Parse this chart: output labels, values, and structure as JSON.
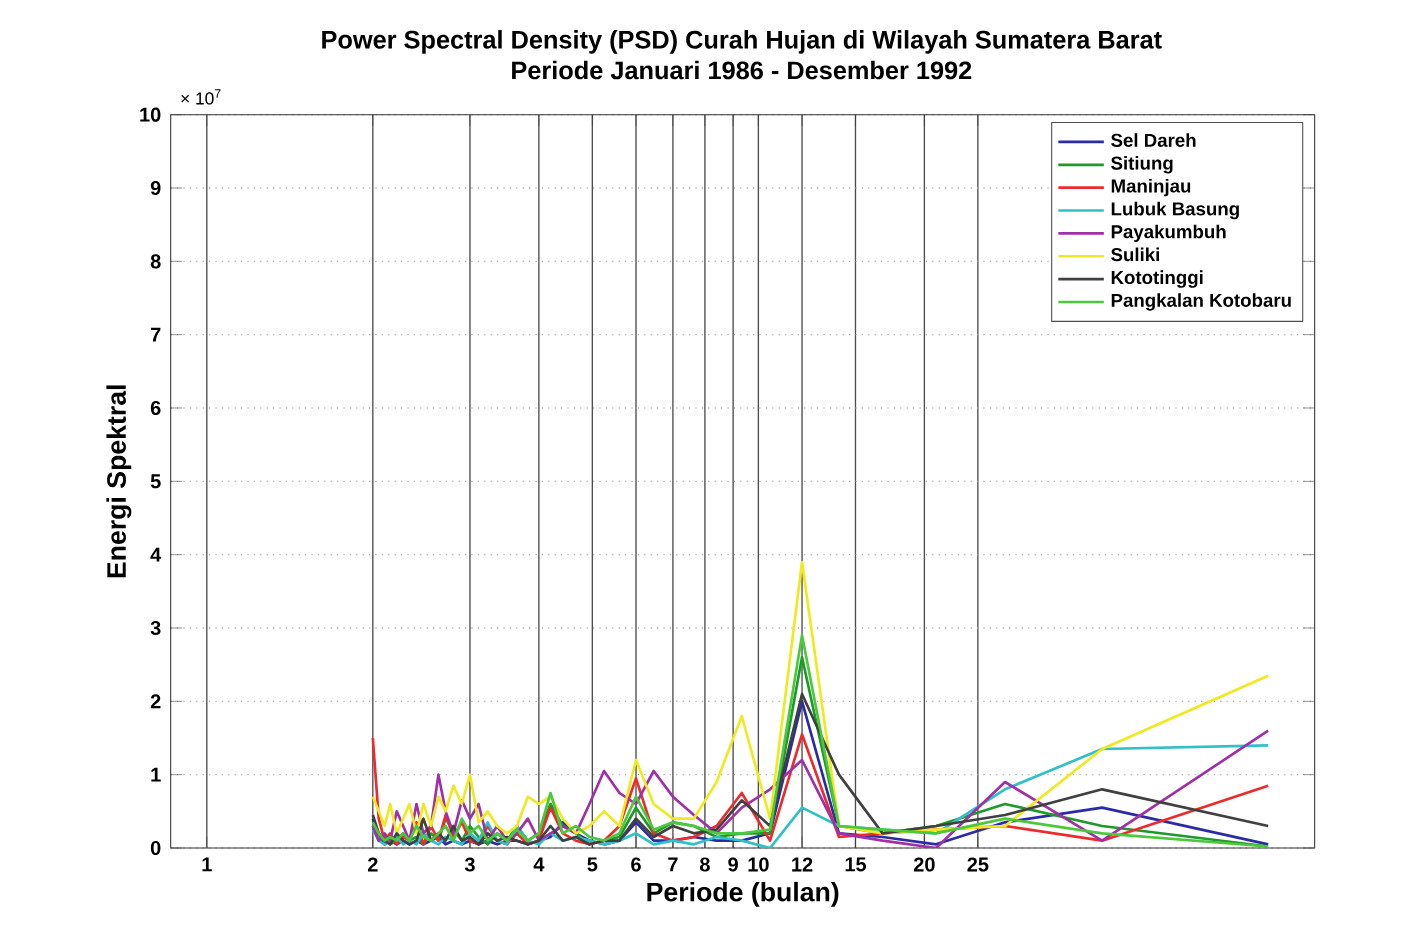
{
  "chart_data": {
    "type": "line",
    "title": "Power Spectral Density (PSD) Curah Hujan di Wilayah Sumatera Barat",
    "subtitle": "Periode Januari 1986 - Desember 1992",
    "xlabel": "Periode (bulan)",
    "ylabel": "Energi Spektral",
    "annotations": [
      "× 10$^{7}$"
    ],
    "log": "x",
    "x": [
      84,
      42,
      28,
      21,
      16.8,
      14,
      12,
      10.5,
      9.33,
      8.4,
      7.64,
      7,
      6.46,
      6,
      5.6,
      5.25,
      4.94,
      4.67,
      4.42,
      4.2,
      4,
      3.82,
      3.65,
      3.5,
      3.36,
      3.23,
      3.11,
      3,
      2.9,
      2.8,
      2.71,
      2.63,
      2.55,
      2.47,
      2.4,
      2.33,
      2.27,
      2.21,
      2.15,
      2.1,
      2.05,
      2
    ],
    "xlim": [
      0.86,
      102
    ],
    "xticks": [
      1,
      2,
      3,
      4,
      5,
      6,
      7,
      8,
      9,
      10,
      12,
      15,
      20,
      25
    ],
    "ylim": [
      0,
      10
    ],
    "yticks": [
      0,
      1,
      2,
      3,
      4,
      5,
      6,
      7,
      8,
      9,
      10
    ],
    "grid": true,
    "legend": "top right",
    "line_style": "solid",
    "marker": "none",
    "series": [
      {
        "name": "Sel Dareh",
        "color": "#2b2ba8",
        "values": [
          0.05,
          0.55,
          0.35,
          0.05,
          0.15,
          0.2,
          2.0,
          0.2,
          0.1,
          0.1,
          0.15,
          0.1,
          0.1,
          0.35,
          0.1,
          0.05,
          0.1,
          0.2,
          0.35,
          0.15,
          0.1,
          0.05,
          0.1,
          0.1,
          0.05,
          0.1,
          0.05,
          0.1,
          0.05,
          0.1,
          0.05,
          0.15,
          0.1,
          0.05,
          0.1,
          0.05,
          0.1,
          0.05,
          0.1,
          0.05,
          0.2,
          0.4
        ]
      },
      {
        "name": "Sitiung",
        "color": "#1e9a2a",
        "values": [
          0.02,
          0.3,
          0.6,
          0.3,
          0.2,
          0.3,
          2.6,
          0.2,
          0.2,
          0.15,
          0.3,
          0.35,
          0.2,
          0.55,
          0.15,
          0.1,
          0.05,
          0.2,
          0.3,
          0.6,
          0.2,
          0.1,
          0.3,
          0.1,
          0.2,
          0.05,
          0.15,
          0.3,
          0.1,
          0.25,
          0.4,
          0.1,
          0.2,
          0.05,
          0.15,
          0.1,
          0.2,
          0.1,
          0.05,
          0.15,
          0.1,
          0.3
        ]
      },
      {
        "name": "Maninjau",
        "color": "#ee2a2a",
        "values": [
          0.85,
          0.1,
          0.3,
          0.25,
          0.2,
          0.15,
          1.55,
          0.1,
          0.75,
          0.3,
          0.15,
          0.1,
          0.2,
          0.95,
          0.3,
          0.1,
          0.05,
          0.1,
          0.2,
          0.55,
          0.1,
          0.05,
          0.2,
          0.05,
          0.1,
          0.3,
          0.05,
          0.1,
          0.35,
          0.15,
          0.45,
          0.1,
          0.3,
          0.05,
          0.35,
          0.1,
          0.15,
          0.05,
          0.2,
          0.1,
          0.4,
          1.5
        ]
      },
      {
        "name": "Lubuk Basung",
        "color": "#30c0c8",
        "values": [
          1.4,
          1.35,
          0.8,
          0.2,
          0.25,
          0.3,
          0.55,
          0.0,
          0.1,
          0.15,
          0.05,
          0.1,
          0.05,
          0.2,
          0.1,
          0.05,
          0.1,
          0.15,
          0.1,
          0.2,
          0.05,
          0.1,
          0.3,
          0.05,
          0.1,
          0.35,
          0.1,
          0.2,
          0.05,
          0.1,
          0.15,
          0.05,
          0.1,
          0.2,
          0.05,
          0.1,
          0.05,
          0.15,
          0.1,
          0.05,
          0.1,
          0.25
        ]
      },
      {
        "name": "Payakumbuh",
        "color": "#a030a8",
        "values": [
          1.6,
          0.1,
          0.9,
          0.0,
          0.1,
          0.2,
          1.2,
          0.8,
          0.55,
          0.2,
          0.45,
          0.7,
          1.05,
          0.6,
          0.75,
          1.05,
          0.6,
          0.2,
          0.3,
          0.2,
          0.1,
          0.4,
          0.2,
          0.1,
          0.3,
          0.1,
          0.6,
          0.4,
          0.65,
          0.2,
          0.5,
          1.0,
          0.3,
          0.2,
          0.6,
          0.1,
          0.3,
          0.5,
          0.1,
          0.2,
          0.1,
          0.3
        ]
      },
      {
        "name": "Suliki",
        "color": "#f0e820",
        "values": [
          2.35,
          1.35,
          0.3,
          0.25,
          0.2,
          0.3,
          3.9,
          0.4,
          1.8,
          0.9,
          0.4,
          0.4,
          0.6,
          1.2,
          0.3,
          0.5,
          0.3,
          0.2,
          0.4,
          0.7,
          0.6,
          0.7,
          0.3,
          0.2,
          0.3,
          0.5,
          0.35,
          1.0,
          0.6,
          0.85,
          0.5,
          0.7,
          0.3,
          0.6,
          0.2,
          0.6,
          0.4,
          0.2,
          0.6,
          0.3,
          0.5,
          0.7
        ]
      },
      {
        "name": "Kototinggi",
        "color": "#404040",
        "values": [
          0.3,
          0.8,
          0.45,
          0.3,
          0.2,
          1.0,
          2.1,
          0.3,
          0.65,
          0.25,
          0.2,
          0.3,
          0.15,
          0.4,
          0.1,
          0.1,
          0.05,
          0.15,
          0.1,
          0.3,
          0.1,
          0.05,
          0.1,
          0.15,
          0.1,
          0.2,
          0.05,
          0.15,
          0.1,
          0.3,
          0.1,
          0.2,
          0.1,
          0.4,
          0.1,
          0.05,
          0.1,
          0.2,
          0.05,
          0.1,
          0.2,
          0.45
        ]
      },
      {
        "name": "Pangkalan Kotobaru",
        "color": "#4cc83c",
        "values": [
          0.02,
          0.2,
          0.4,
          0.2,
          0.25,
          0.3,
          2.9,
          0.25,
          0.2,
          0.2,
          0.3,
          0.35,
          0.25,
          0.7,
          0.2,
          0.1,
          0.15,
          0.3,
          0.2,
          0.75,
          0.2,
          0.1,
          0.25,
          0.1,
          0.2,
          0.1,
          0.3,
          0.2,
          0.4,
          0.1,
          0.3,
          0.2,
          0.1,
          0.15,
          0.3,
          0.1,
          0.2,
          0.1,
          0.15,
          0.1,
          0.2,
          0.35
        ]
      }
    ]
  }
}
